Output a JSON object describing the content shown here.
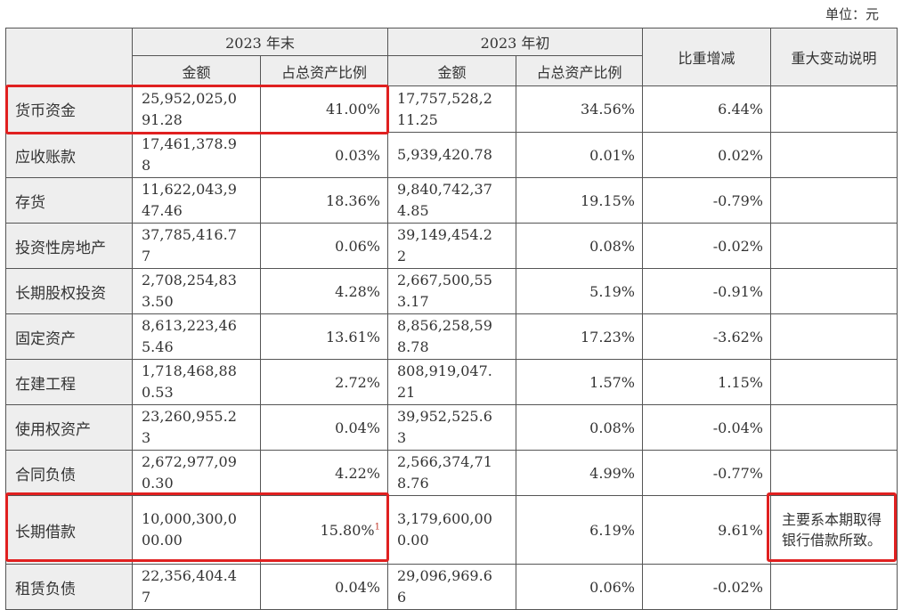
{
  "unit_label": "单位：元",
  "header": {
    "end_group": "2023 年末",
    "start_group": "2023 年初",
    "change": "比重增减",
    "note": "重大变动说明",
    "amount": "金额",
    "ratio": "占总资产比例"
  },
  "rows": [
    {
      "name": "货币资金",
      "end_amount_1": "25,952,025,0",
      "end_amount_2": "91.28",
      "end_ratio": "41.00%",
      "start_amount_1": "17,757,528,2",
      "start_amount_2": "11.25",
      "start_ratio": "34.56%",
      "change": "6.44%",
      "note": ""
    },
    {
      "name": "应收账款",
      "end_amount_1": "17,461,378.9",
      "end_amount_2": "8",
      "end_ratio": "0.03%",
      "start_amount_1": "5,939,420.78",
      "start_amount_2": "",
      "start_ratio": "0.01%",
      "change": "0.02%",
      "note": ""
    },
    {
      "name": "存货",
      "end_amount_1": "11,622,043,9",
      "end_amount_2": "47.46",
      "end_ratio": "18.36%",
      "start_amount_1": "9,840,742,37",
      "start_amount_2": "4.85",
      "start_ratio": "19.15%",
      "change": "-0.79%",
      "note": ""
    },
    {
      "name": "投资性房地产",
      "end_amount_1": "37,785,416.7",
      "end_amount_2": "7",
      "end_ratio": "0.06%",
      "start_amount_1": "39,149,454.2",
      "start_amount_2": "2",
      "start_ratio": "0.08%",
      "change": "-0.02%",
      "note": ""
    },
    {
      "name": "长期股权投资",
      "end_amount_1": "2,708,254,83",
      "end_amount_2": "3.50",
      "end_ratio": "4.28%",
      "start_amount_1": "2,667,500,55",
      "start_amount_2": "3.17",
      "start_ratio": "5.19%",
      "change": "-0.91%",
      "note": ""
    },
    {
      "name": "固定资产",
      "end_amount_1": "8,613,223,46",
      "end_amount_2": "5.46",
      "end_ratio": "13.61%",
      "start_amount_1": "8,856,258,59",
      "start_amount_2": "8.78",
      "start_ratio": "17.23%",
      "change": "-3.62%",
      "note": ""
    },
    {
      "name": "在建工程",
      "end_amount_1": "1,718,468,88",
      "end_amount_2": "0.53",
      "end_ratio": "2.72%",
      "start_amount_1": "808,919,047.",
      "start_amount_2": "21",
      "start_ratio": "1.57%",
      "change": "1.15%",
      "note": ""
    },
    {
      "name": "使用权资产",
      "end_amount_1": "23,260,955.2",
      "end_amount_2": "3",
      "end_ratio": "0.04%",
      "start_amount_1": "39,952,525.6",
      "start_amount_2": "3",
      "start_ratio": "0.08%",
      "change": "-0.04%",
      "note": ""
    },
    {
      "name": "合同负债",
      "end_amount_1": "2,672,977,09",
      "end_amount_2": "0.30",
      "end_ratio": "4.22%",
      "start_amount_1": "2,566,374,71",
      "start_amount_2": "8.76",
      "start_ratio": "4.99%",
      "change": "-0.77%",
      "note": ""
    },
    {
      "name": "长期借款",
      "end_amount_1": "10,000,300,0",
      "end_amount_2": "00.00",
      "end_ratio": "15.80%",
      "end_ratio_sup": "1",
      "start_amount_1": "3,179,600,00",
      "start_amount_2": "0.00",
      "start_ratio": "6.19%",
      "change": "9.61%",
      "note": "主要系本期取得银行借款所致。"
    },
    {
      "name": "租赁负债",
      "end_amount_1": "22,356,404.4",
      "end_amount_2": "7",
      "end_ratio": "0.04%",
      "start_amount_1": "29,096,969.6",
      "start_amount_2": "6",
      "start_ratio": "0.06%",
      "change": "-0.02%",
      "note": ""
    }
  ],
  "highlight_color": "#e02020"
}
